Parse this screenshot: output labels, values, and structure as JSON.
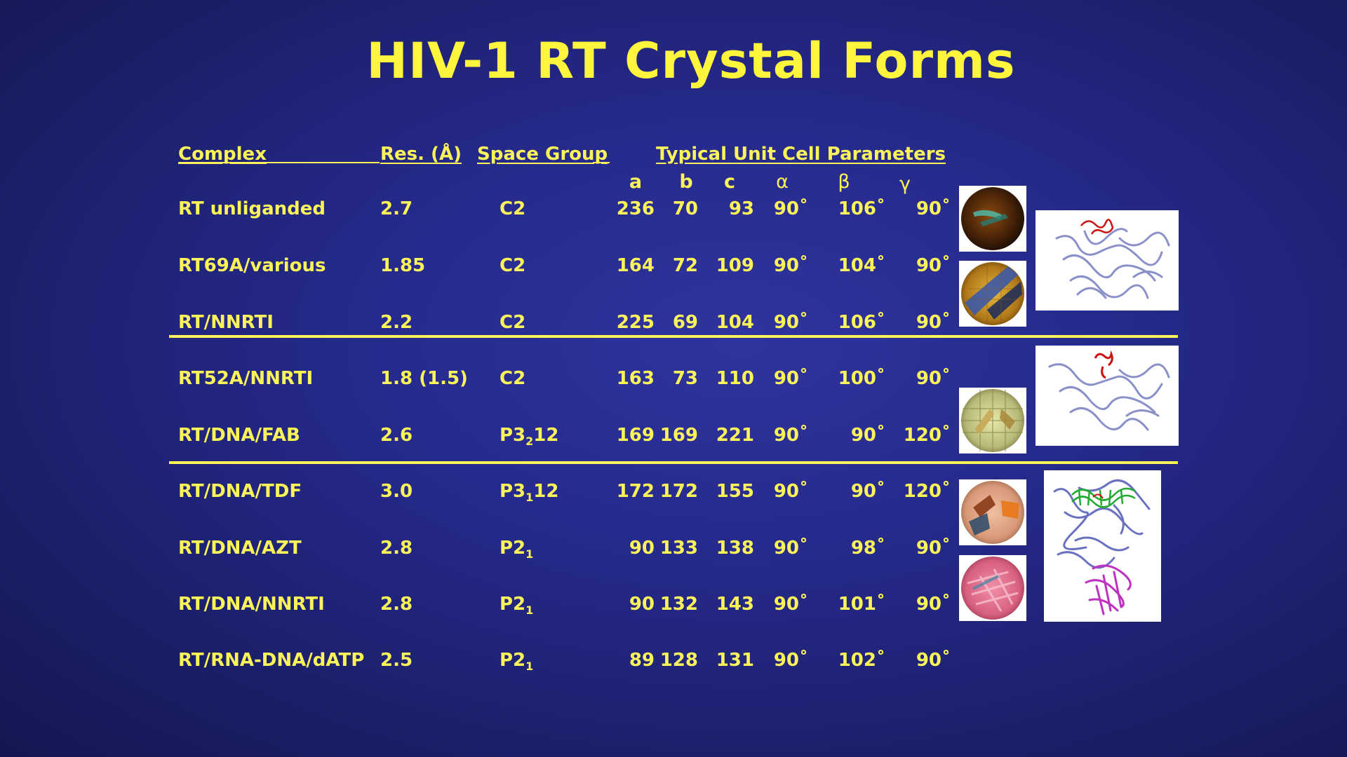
{
  "title": "HIV-1 RT Crystal Forms",
  "headers": {
    "complex": "Complex",
    "res": "Res. (Å)",
    "space_group": "Space Group",
    "unit_cell": "Typical Unit Cell Parameters"
  },
  "param_labels": [
    "a",
    "b",
    "c",
    "α",
    "β",
    "γ"
  ],
  "rows": [
    {
      "complex": "RT unliganded",
      "res": "2.7",
      "sg_main": "C2",
      "sg_sub": "",
      "sg_tail": "",
      "a": "236",
      "b": "70",
      "c": "93",
      "alpha": "90˚",
      "beta": "106˚",
      "gamma": "90˚"
    },
    {
      "complex": "RT69A/various",
      "res": "1.85",
      "sg_main": "C2",
      "sg_sub": "",
      "sg_tail": "",
      "a": "164",
      "b": "72",
      "c": "109",
      "alpha": "90˚",
      "beta": "104˚",
      "gamma": "90˚"
    },
    {
      "complex": "RT/NNRTI",
      "res": "2.2",
      "sg_main": "C2",
      "sg_sub": "",
      "sg_tail": "",
      "a": "225",
      "b": "69",
      "c": "104",
      "alpha": "90˚",
      "beta": "106˚",
      "gamma": "90˚"
    },
    {
      "complex": "RT52A/NNRTI",
      "res": "1.8 (1.5)",
      "sg_main": "C2",
      "sg_sub": "",
      "sg_tail": "",
      "a": "163",
      "b": "73",
      "c": "110",
      "alpha": "90˚",
      "beta": "100˚",
      "gamma": "90˚"
    },
    {
      "complex": "RT/DNA/FAB",
      "res": "2.6",
      "sg_main": "P3",
      "sg_sub": "2",
      "sg_tail": "12",
      "a": "169",
      "b": "169",
      "c": "221",
      "alpha": "90˚",
      "beta": "90˚",
      "gamma": "120˚"
    },
    {
      "complex": "RT/DNA/TDF",
      "res": "3.0",
      "sg_main": "P3",
      "sg_sub": "1",
      "sg_tail": "12",
      "a": "172",
      "b": "172",
      "c": "155",
      "alpha": "90˚",
      "beta": "90˚",
      "gamma": "120˚"
    },
    {
      "complex": "RT/DNA/AZT",
      "res": "2.8",
      "sg_main": "P2",
      "sg_sub": "1",
      "sg_tail": "",
      "a": "90",
      "b": "133",
      "c": "138",
      "alpha": "90˚",
      "beta": "98˚",
      "gamma": "90˚"
    },
    {
      "complex": "RT/DNA/NNRTI",
      "res": "2.8",
      "sg_main": "P2",
      "sg_sub": "1",
      "sg_tail": "",
      "a": "90",
      "b": "132",
      "c": "143",
      "alpha": "90˚",
      "beta": "101˚",
      "gamma": "90˚"
    },
    {
      "complex": "RT/RNA-DNA/dATP",
      "res": "2.5",
      "sg_main": "P2",
      "sg_sub": "1",
      "sg_tail": "",
      "a": "89",
      "b": "128",
      "c": "131",
      "alpha": "90˚",
      "beta": "102˚",
      "gamma": "90˚"
    }
  ],
  "colors": {
    "text": "#fbf35a",
    "background": "#262a8c",
    "protein": "#8a91c8",
    "ligand_red": "#cc1111",
    "dna_green": "#22aa33",
    "fab_magenta": "#c030c0"
  },
  "images": [
    {
      "name": "crystal-photo-1",
      "description_icon": "crystal-photo"
    },
    {
      "name": "crystal-photo-2",
      "description_icon": "crystal-photo"
    },
    {
      "name": "crystal-photo-3",
      "description_icon": "crystal-photo"
    },
    {
      "name": "crystal-photo-4",
      "description_icon": "crystal-photo"
    },
    {
      "name": "crystal-photo-5",
      "description_icon": "crystal-photo"
    },
    {
      "name": "structure-1",
      "description_icon": "ribbon-structure"
    },
    {
      "name": "structure-2",
      "description_icon": "ribbon-structure"
    },
    {
      "name": "structure-3",
      "description_icon": "ribbon-structure"
    }
  ]
}
